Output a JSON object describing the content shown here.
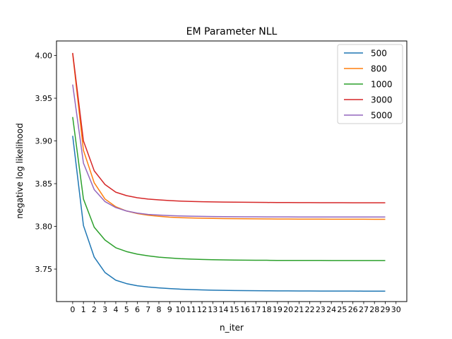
{
  "chart_data": {
    "type": "line",
    "title": "EM Parameter NLL",
    "xlabel": "n_iter",
    "ylabel": "negative log likelihood",
    "xlim": [
      -1.5,
      31
    ],
    "ylim": [
      3.712,
      4.017
    ],
    "xticks": [
      0,
      1,
      2,
      3,
      4,
      5,
      6,
      7,
      8,
      9,
      10,
      11,
      12,
      13,
      14,
      15,
      16,
      17,
      18,
      19,
      20,
      21,
      22,
      23,
      24,
      25,
      26,
      27,
      28,
      29,
      30
    ],
    "yticks": [
      3.75,
      3.8,
      3.85,
      3.9,
      3.95,
      4.0
    ],
    "ytick_labels": [
      "3.75",
      "3.80",
      "3.85",
      "3.90",
      "3.95",
      "4.00"
    ],
    "grid": false,
    "legend_position": "top-right",
    "x": [
      0,
      1,
      2,
      3,
      4,
      5,
      6,
      7,
      8,
      9,
      10,
      11,
      12,
      13,
      14,
      15,
      16,
      17,
      18,
      19,
      20,
      21,
      22,
      23,
      24,
      25,
      26,
      27,
      28,
      29
    ],
    "series": [
      {
        "name": "500",
        "color": "#1f77b4",
        "values": [
          3.906,
          3.801,
          3.764,
          3.746,
          3.737,
          3.733,
          3.7305,
          3.729,
          3.728,
          3.7272,
          3.7265,
          3.726,
          3.7256,
          3.7253,
          3.7251,
          3.7249,
          3.7248,
          3.7247,
          3.7246,
          3.7245,
          3.7245,
          3.7244,
          3.7244,
          3.7243,
          3.7243,
          3.7243,
          3.7243,
          3.7242,
          3.7242,
          3.7242
        ]
      },
      {
        "name": "800",
        "color": "#ff7f0e",
        "values": [
          4.002,
          3.889,
          3.851,
          3.832,
          3.823,
          3.818,
          3.815,
          3.813,
          3.8118,
          3.8108,
          3.8102,
          3.8098,
          3.8095,
          3.8093,
          3.8091,
          3.809,
          3.8089,
          3.8088,
          3.8087,
          3.8086,
          3.8086,
          3.8085,
          3.8085,
          3.8085,
          3.8084,
          3.8084,
          3.8084,
          3.8084,
          3.8083,
          3.8083
        ]
      },
      {
        "name": "1000",
        "color": "#2ca02c",
        "values": [
          3.928,
          3.832,
          3.799,
          3.784,
          3.775,
          3.7705,
          3.7675,
          3.7655,
          3.764,
          3.763,
          3.7622,
          3.7617,
          3.7613,
          3.761,
          3.7608,
          3.7606,
          3.7605,
          3.7604,
          3.7603,
          3.7602,
          3.7602,
          3.7601,
          3.7601,
          3.7601,
          3.76,
          3.76,
          3.76,
          3.76,
          3.76,
          3.76
        ]
      },
      {
        "name": "3000",
        "color": "#d62728",
        "values": [
          4.003,
          3.9,
          3.865,
          3.849,
          3.84,
          3.836,
          3.8335,
          3.832,
          3.831,
          3.8302,
          3.8296,
          3.8292,
          3.8289,
          3.8286,
          3.8284,
          3.8283,
          3.8282,
          3.8281,
          3.828,
          3.8279,
          3.8279,
          3.8278,
          3.8278,
          3.8277,
          3.8277,
          3.8277,
          3.8276,
          3.8276,
          3.8276,
          3.8276
        ]
      },
      {
        "name": "5000",
        "color": "#9467bd",
        "values": [
          3.966,
          3.874,
          3.843,
          3.829,
          3.822,
          3.818,
          3.8155,
          3.814,
          3.8132,
          3.8126,
          3.8122,
          3.8119,
          3.8117,
          3.8115,
          3.8114,
          3.8113,
          3.8112,
          3.8112,
          3.8111,
          3.8111,
          3.8111,
          3.811,
          3.811,
          3.811,
          3.811,
          3.811,
          3.811,
          3.811,
          3.811,
          3.811
        ]
      }
    ]
  }
}
